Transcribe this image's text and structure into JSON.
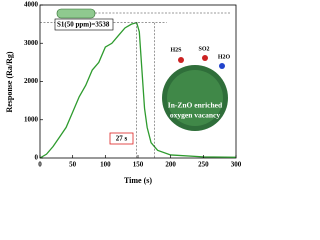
{
  "chart_data": {
    "type": "line",
    "xlabel": "Time (s)",
    "ylabel": "Response (Ra/Rg)",
    "x": [
      0,
      10,
      20,
      30,
      40,
      50,
      60,
      70,
      80,
      90,
      100,
      110,
      120,
      130,
      140,
      148,
      152,
      156,
      160,
      164,
      170,
      180,
      200,
      250,
      300
    ],
    "series": [
      {
        "name": "Response",
        "color": "#2e9b2e",
        "values": [
          0,
          100,
          300,
          550,
          800,
          1200,
          1600,
          1900,
          2300,
          2500,
          2900,
          3000,
          3200,
          3400,
          3500,
          3538,
          3300,
          2300,
          1300,
          800,
          400,
          200,
          80,
          30,
          20
        ]
      }
    ],
    "xlim": [
      0,
      300
    ],
    "xticks": [
      0,
      50,
      100,
      150,
      200,
      250,
      300
    ],
    "ylim": [
      0,
      4000
    ],
    "yticks": [
      0,
      1000,
      2000,
      3000,
      4000
    ],
    "annotations": {
      "response": "S1(50 ppm)=3538",
      "time": "27 s",
      "molecules": [
        "H2S",
        "SO2",
        "H2O"
      ],
      "material": [
        "In-ZnO enriched",
        "oxygen vacancy"
      ]
    }
  }
}
